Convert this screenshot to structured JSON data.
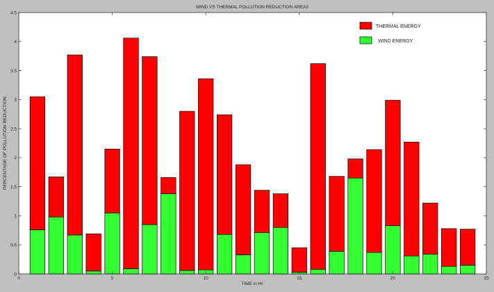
{
  "chart_data": {
    "type": "bar",
    "stacked": true,
    "title": "WIND VS THERMAL POLLUTION REDUCTION AREA2",
    "xlabel": "TIME in Hr",
    "ylabel": "PERCENTAGE OF POLLUTION REDUCTION",
    "xlim": [
      0,
      25
    ],
    "ylim": [
      0,
      4.5
    ],
    "xticks": [
      0,
      5,
      10,
      15,
      20,
      25
    ],
    "yticks": [
      0,
      0.5,
      1,
      1.5,
      2,
      2.5,
      3,
      3.5,
      4,
      4.5
    ],
    "xtick_labels": [
      "0",
      "5",
      "10",
      "15",
      "20",
      "25"
    ],
    "ytick_labels": [
      "0",
      "0.5",
      "1",
      "1.5",
      "2",
      "2.5",
      "3",
      "3.5",
      "4",
      "4.5"
    ],
    "grid": false,
    "legend_position": "top-right",
    "x": [
      1,
      2,
      3,
      4,
      5,
      6,
      7,
      8,
      9,
      10,
      11,
      12,
      13,
      14,
      15,
      16,
      17,
      18,
      19,
      20,
      21,
      22,
      23,
      24
    ],
    "series": [
      {
        "name": "WIND ENERGY",
        "color": "#33ff33",
        "values": [
          0.76,
          0.98,
          0.67,
          0.05,
          1.05,
          0.09,
          0.85,
          1.38,
          0.06,
          0.07,
          0.68,
          0.33,
          0.71,
          0.8,
          0.03,
          0.08,
          0.39,
          1.65,
          0.37,
          0.83,
          0.31,
          0.34,
          0.13,
          0.15
        ]
      },
      {
        "name": "THERMAL ENERGY",
        "color": "#ff0000",
        "values": [
          2.29,
          0.69,
          3.1,
          0.64,
          1.1,
          3.97,
          2.89,
          0.28,
          2.74,
          3.29,
          2.06,
          1.55,
          0.73,
          0.58,
          0.42,
          3.54,
          1.29,
          0.33,
          1.77,
          2.16,
          1.96,
          0.88,
          0.65,
          0.62
        ]
      }
    ]
  }
}
